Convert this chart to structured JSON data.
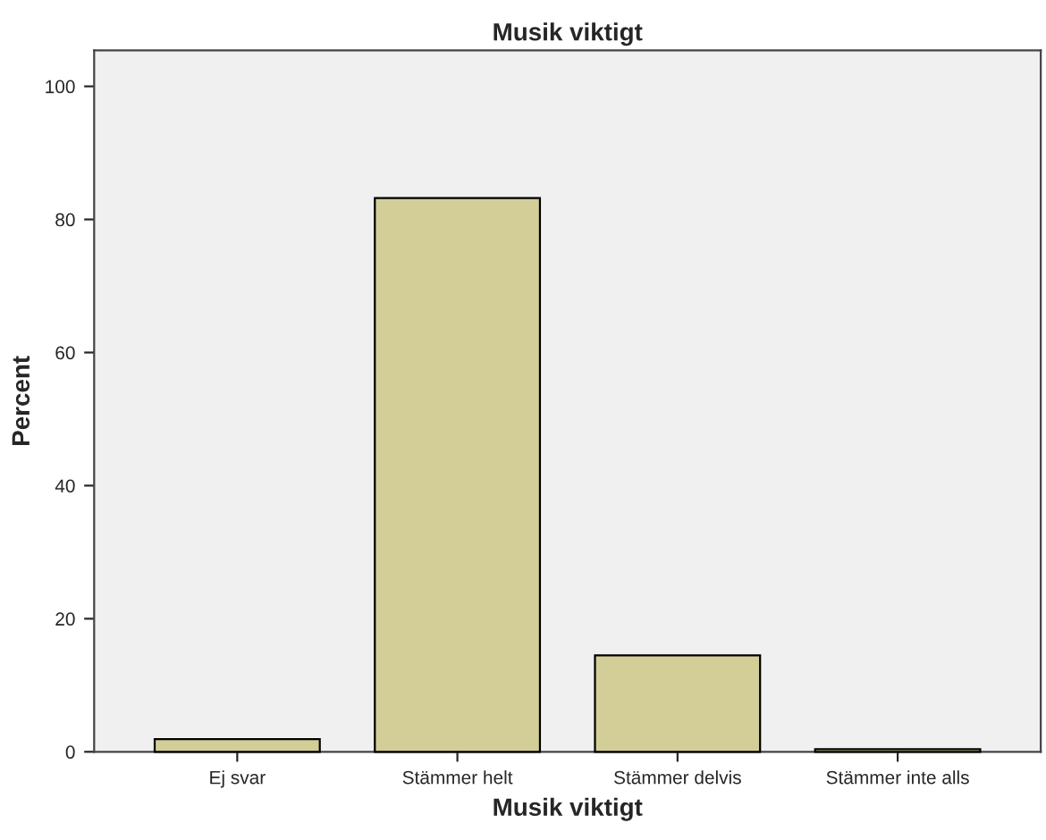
{
  "chart_data": {
    "type": "bar",
    "title": "Musik viktigt",
    "xlabel": "Musik viktigt",
    "ylabel": "Percent",
    "categories": [
      "Ej svar",
      "Stämmer helt",
      "Stämmer delvis",
      "Stämmer inte alls"
    ],
    "values": [
      1.9,
      83.2,
      14.5,
      0.4
    ],
    "color": "#d3ce97",
    "ylim": [
      0,
      105.4
    ],
    "yticks": [
      0,
      20,
      40,
      60,
      80,
      100
    ],
    "grid": false
  }
}
